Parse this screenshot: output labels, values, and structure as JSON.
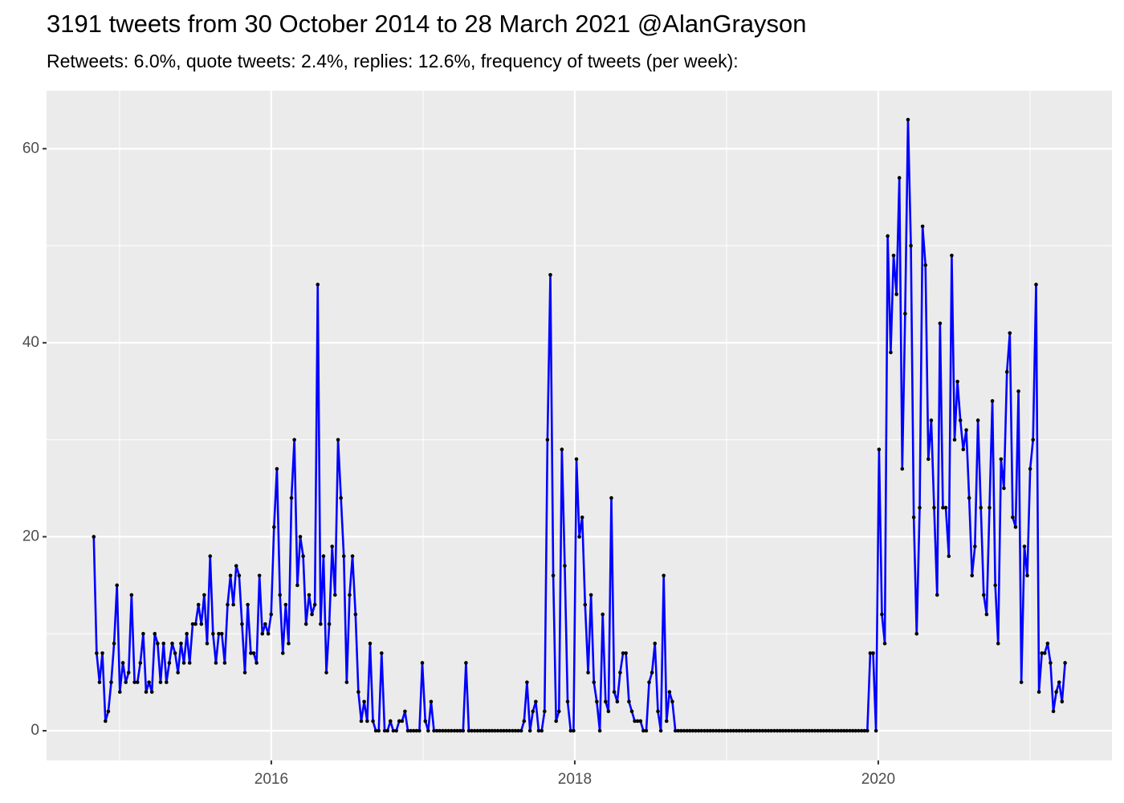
{
  "chart_data": {
    "type": "line",
    "title": "3191 tweets from 30 October 2014 to 28 March 2021 @AlanGrayson",
    "subtitle": "Retweets: 6.0%, quote tweets: 2.4%, replies: 12.6%, frequency of tweets (per week):",
    "x": [
      2014.83,
      2014.849,
      2014.868,
      2014.887,
      2014.907,
      2014.926,
      2014.945,
      2014.964,
      2014.983,
      2015.002,
      2015.022,
      2015.041,
      2015.06,
      2015.079,
      2015.099,
      2015.118,
      2015.137,
      2015.156,
      2015.175,
      2015.194,
      2015.213,
      2015.232,
      2015.251,
      2015.27,
      2015.29,
      2015.309,
      2015.328,
      2015.347,
      2015.366,
      2015.385,
      2015.405,
      2015.424,
      2015.443,
      2015.462,
      2015.482,
      2015.501,
      2015.52,
      2015.539,
      2015.558,
      2015.577,
      2015.597,
      2015.616,
      2015.635,
      2015.654,
      2015.674,
      2015.693,
      2015.712,
      2015.731,
      2015.75,
      2015.769,
      2015.788,
      2015.807,
      2015.826,
      2015.845,
      2015.865,
      2015.884,
      2015.903,
      2015.922,
      2015.941,
      2015.96,
      2015.98,
      2015.999,
      2016.018,
      2016.037,
      2016.057,
      2016.076,
      2016.095,
      2016.114,
      2016.133,
      2016.152,
      2016.172,
      2016.191,
      2016.21,
      2016.229,
      2016.249,
      2016.268,
      2016.287,
      2016.306,
      2016.325,
      2016.344,
      2016.363,
      2016.382,
      2016.401,
      2016.42,
      2016.44,
      2016.459,
      2016.478,
      2016.497,
      2016.516,
      2016.535,
      2016.555,
      2016.574,
      2016.593,
      2016.612,
      2016.632,
      2016.651,
      2016.67,
      2016.689,
      2016.708,
      2016.727,
      2016.747,
      2016.766,
      2016.785,
      2016.804,
      2016.824,
      2016.843,
      2016.862,
      2016.881,
      2016.9,
      2016.919,
      2016.938,
      2016.957,
      2016.976,
      2016.995,
      2017.015,
      2017.034,
      2017.053,
      2017.072,
      2017.091,
      2017.11,
      2017.13,
      2017.149,
      2017.168,
      2017.187,
      2017.207,
      2017.226,
      2017.245,
      2017.264,
      2017.283,
      2017.302,
      2017.321,
      2017.34,
      2017.359,
      2017.378,
      2017.398,
      2017.417,
      2017.436,
      2017.455,
      2017.474,
      2017.493,
      2017.513,
      2017.532,
      2017.551,
      2017.57,
      2017.59,
      2017.609,
      2017.628,
      2017.647,
      2017.666,
      2017.685,
      2017.705,
      2017.724,
      2017.743,
      2017.762,
      2017.782,
      2017.801,
      2017.82,
      2017.839,
      2017.858,
      2017.877,
      2017.896,
      2017.915,
      2017.934,
      2017.953,
      2017.973,
      2017.992,
      2018.011,
      2018.03,
      2018.049,
      2018.068,
      2018.088,
      2018.107,
      2018.126,
      2018.145,
      2018.165,
      2018.184,
      2018.203,
      2018.222,
      2018.241,
      2018.26,
      2018.28,
      2018.299,
      2018.318,
      2018.337,
      2018.357,
      2018.376,
      2018.395,
      2018.414,
      2018.433,
      2018.452,
      2018.471,
      2018.49,
      2018.509,
      2018.528,
      2018.548,
      2018.567,
      2018.586,
      2018.605,
      2018.624,
      2018.643,
      2018.663,
      2018.682,
      2018.701,
      2018.72,
      2018.74,
      2018.759,
      2018.778,
      2018.797,
      2018.816,
      2018.835,
      2018.855,
      2018.874,
      2018.893,
      2018.912,
      2018.932,
      2018.951,
      2018.97,
      2018.989,
      2019.008,
      2019.027,
      2019.046,
      2019.065,
      2019.084,
      2019.103,
      2019.123,
      2019.142,
      2019.161,
      2019.18,
      2019.199,
      2019.218,
      2019.238,
      2019.257,
      2019.276,
      2019.295,
      2019.315,
      2019.334,
      2019.353,
      2019.372,
      2019.391,
      2019.41,
      2019.43,
      2019.449,
      2019.468,
      2019.487,
      2019.507,
      2019.526,
      2019.545,
      2019.564,
      2019.583,
      2019.602,
      2019.621,
      2019.64,
      2019.659,
      2019.678,
      2019.698,
      2019.717,
      2019.736,
      2019.755,
      2019.774,
      2019.793,
      2019.813,
      2019.832,
      2019.851,
      2019.87,
      2019.89,
      2019.909,
      2019.928,
      2019.947,
      2019.966,
      2019.985,
      2020.005,
      2020.024,
      2020.043,
      2020.062,
      2020.082,
      2020.101,
      2020.12,
      2020.139,
      2020.158,
      2020.177,
      2020.196,
      2020.215,
      2020.234,
      2020.253,
      2020.273,
      2020.292,
      2020.311,
      2020.33,
      2020.349,
      2020.368,
      2020.388,
      2020.407,
      2020.426,
      2020.445,
      2020.465,
      2020.484,
      2020.503,
      2020.522,
      2020.541,
      2020.56,
      2020.58,
      2020.599,
      2020.618,
      2020.637,
      2020.657,
      2020.676,
      2020.695,
      2020.714,
      2020.733,
      2020.752,
      2020.771,
      2020.79,
      2020.809,
      2020.828,
      2020.848,
      2020.867,
      2020.886,
      2020.905,
      2020.924,
      2020.943,
      2020.963,
      2020.982,
      2021.001,
      2021.02,
      2021.04,
      2021.059,
      2021.078,
      2021.097,
      2021.116,
      2021.135,
      2021.154,
      2021.173,
      2021.192,
      2021.211,
      2021.231
    ],
    "values": [
      20,
      8,
      5,
      8,
      1,
      2,
      5,
      9,
      15,
      4,
      7,
      5,
      6,
      14,
      5,
      5,
      7,
      10,
      4,
      5,
      4,
      10,
      9,
      5,
      9,
      5,
      7,
      9,
      8,
      6,
      9,
      7,
      10,
      7,
      11,
      11,
      13,
      11,
      14,
      9,
      18,
      10,
      7,
      10,
      10,
      7,
      13,
      16,
      13,
      17,
      16,
      11,
      6,
      13,
      8,
      8,
      7,
      16,
      10,
      11,
      10,
      12,
      21,
      27,
      14,
      8,
      13,
      9,
      24,
      30,
      15,
      20,
      18,
      11,
      14,
      12,
      13,
      46,
      11,
      18,
      6,
      11,
      19,
      14,
      30,
      24,
      18,
      5,
      14,
      18,
      12,
      4,
      1,
      3,
      1,
      9,
      1,
      0,
      0,
      8,
      0,
      0,
      1,
      0,
      0,
      1,
      1,
      2,
      0,
      0,
      0,
      0,
      0,
      7,
      1,
      0,
      3,
      0,
      0,
      0,
      0,
      0,
      0,
      0,
      0,
      0,
      0,
      0,
      7,
      0,
      0,
      0,
      0,
      0,
      0,
      0,
      0,
      0,
      0,
      0,
      0,
      0,
      0,
      0,
      0,
      0,
      0,
      0,
      1,
      5,
      0,
      2,
      3,
      0,
      0,
      2,
      30,
      47,
      16,
      1,
      2,
      29,
      17,
      3,
      0,
      0,
      28,
      20,
      22,
      13,
      6,
      14,
      5,
      3,
      0,
      12,
      3,
      2,
      24,
      4,
      3,
      6,
      8,
      8,
      3,
      2,
      1,
      1,
      1,
      0,
      0,
      5,
      6,
      9,
      2,
      0,
      16,
      1,
      4,
      3,
      0,
      0,
      0,
      0,
      0,
      0,
      0,
      0,
      0,
      0,
      0,
      0,
      0,
      0,
      0,
      0,
      0,
      0,
      0,
      0,
      0,
      0,
      0,
      0,
      0,
      0,
      0,
      0,
      0,
      0,
      0,
      0,
      0,
      0,
      0,
      0,
      0,
      0,
      0,
      0,
      0,
      0,
      0,
      0,
      0,
      0,
      0,
      0,
      0,
      0,
      0,
      0,
      0,
      0,
      0,
      0,
      0,
      0,
      0,
      0,
      0,
      0,
      0,
      0,
      0,
      0,
      0,
      8,
      8,
      0,
      29,
      12,
      9,
      51,
      39,
      49,
      45,
      57,
      27,
      43,
      63,
      50,
      22,
      10,
      23,
      52,
      48,
      28,
      32,
      23,
      14,
      42,
      23,
      23,
      18,
      49,
      30,
      36,
      32,
      29,
      31,
      24,
      16,
      19,
      32,
      23,
      14,
      12,
      23,
      34,
      15,
      9,
      28,
      25,
      37,
      41,
      22,
      21,
      35,
      5,
      19,
      16,
      27,
      30,
      46,
      4,
      8,
      8,
      9,
      7,
      2,
      4,
      5,
      3,
      7
    ],
    "color": "#0000ff",
    "marker_color": "#000000",
    "xlim": [
      2014.519,
      2021.54
    ],
    "ylim": [
      -3.06,
      65.98
    ],
    "xticks": [
      2016,
      2018,
      2020
    ],
    "yticks": [
      0,
      20,
      40,
      60
    ],
    "grid": true
  }
}
